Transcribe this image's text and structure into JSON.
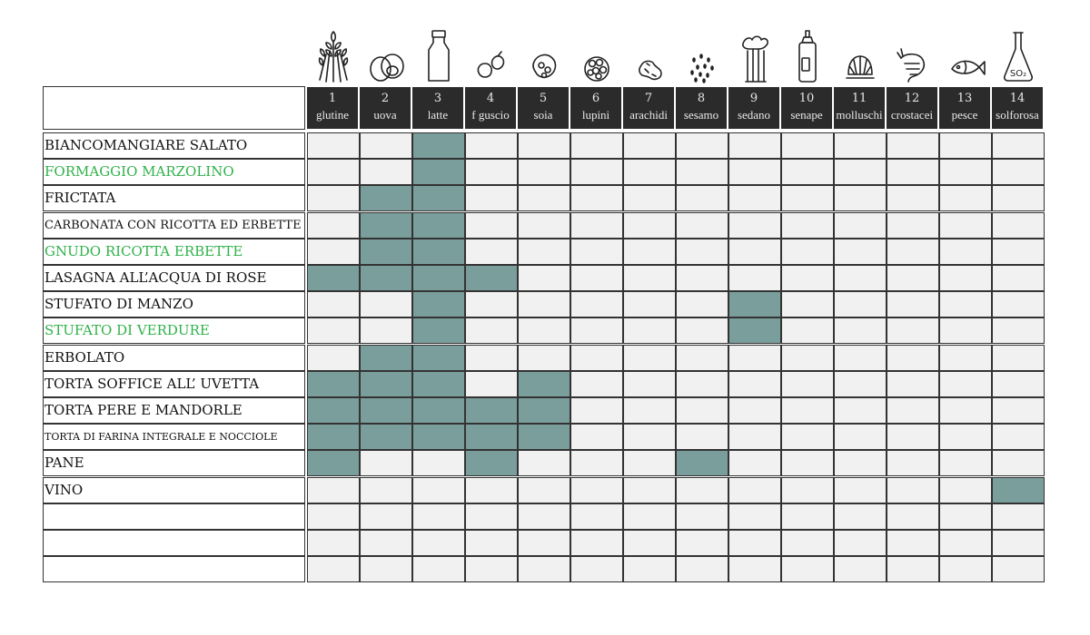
{
  "colors": {
    "header_bg": "#2b2b2b",
    "marked_cell": "#7a9e9c",
    "empty_cell": "#f1f1f1",
    "green_text": "#2fb24a"
  },
  "allergens": [
    {
      "num": "1",
      "name": "glutine",
      "icon": "wheat-icon"
    },
    {
      "num": "2",
      "name": "uova",
      "icon": "egg-icon"
    },
    {
      "num": "3",
      "name": "latte",
      "icon": "milk-bottle-icon"
    },
    {
      "num": "4",
      "name": "f guscio",
      "icon": "nuts-icon"
    },
    {
      "num": "5",
      "name": "soia",
      "icon": "soy-icon"
    },
    {
      "num": "6",
      "name": "lupini",
      "icon": "lupin-icon"
    },
    {
      "num": "7",
      "name": "arachidi",
      "icon": "peanut-icon"
    },
    {
      "num": "8",
      "name": "sesamo",
      "icon": "sesame-icon"
    },
    {
      "num": "9",
      "name": "sedano",
      "icon": "celery-icon"
    },
    {
      "num": "10",
      "name": "senape",
      "icon": "mustard-icon"
    },
    {
      "num": "11",
      "name": "molluschi",
      "icon": "shell-icon"
    },
    {
      "num": "12",
      "name": "crostacei",
      "icon": "shrimp-icon"
    },
    {
      "num": "13",
      "name": "pesce",
      "icon": "fish-icon"
    },
    {
      "num": "14",
      "name": "solforosa",
      "icon": "sulfite-flask-icon"
    }
  ],
  "rows": [
    {
      "label": "BIANCOMANGIARE SALATO",
      "green": false,
      "allergens": [
        3
      ]
    },
    {
      "label": "FORMAGGIO MARZOLINO",
      "green": true,
      "allergens": [
        3
      ]
    },
    {
      "label": "FRICTATA",
      "green": false,
      "allergens": [
        2,
        3
      ]
    },
    {
      "label": "CARBONATA CON RICOTTA ED ERBETTE",
      "green": false,
      "allergens": [
        2,
        3
      ]
    },
    {
      "label": "GNUDO RICOTTA ERBETTE",
      "green": true,
      "allergens": [
        2,
        3
      ]
    },
    {
      "label": "LASAGNA ALL’ACQUA DI ROSE",
      "green": false,
      "allergens": [
        1,
        2,
        3,
        4
      ]
    },
    {
      "label": "STUFATO DI MANZO",
      "green": false,
      "allergens": [
        3,
        9
      ]
    },
    {
      "label": "STUFATO DI VERDURE",
      "green": true,
      "allergens": [
        3,
        9
      ]
    },
    {
      "label": "ERBOLATO",
      "green": false,
      "allergens": [
        2,
        3
      ]
    },
    {
      "label": "TORTA SOFFICE ALL’ UVETTA",
      "green": false,
      "allergens": [
        1,
        2,
        3,
        5
      ]
    },
    {
      "label": "TORTA PERE E MANDORLE",
      "green": false,
      "allergens": [
        1,
        2,
        3,
        4,
        5
      ]
    },
    {
      "label": "TORTA DI FARINA INTEGRALE E NOCCIOLE",
      "green": false,
      "allergens": [
        1,
        2,
        3,
        4,
        5
      ]
    },
    {
      "label": "PANE",
      "green": false,
      "allergens": [
        1,
        4,
        8
      ]
    },
    {
      "label": "VINO",
      "green": false,
      "allergens": [
        14
      ]
    },
    {
      "label": "",
      "green": false,
      "allergens": []
    },
    {
      "label": "",
      "green": false,
      "allergens": []
    },
    {
      "label": "",
      "green": false,
      "allergens": []
    }
  ]
}
